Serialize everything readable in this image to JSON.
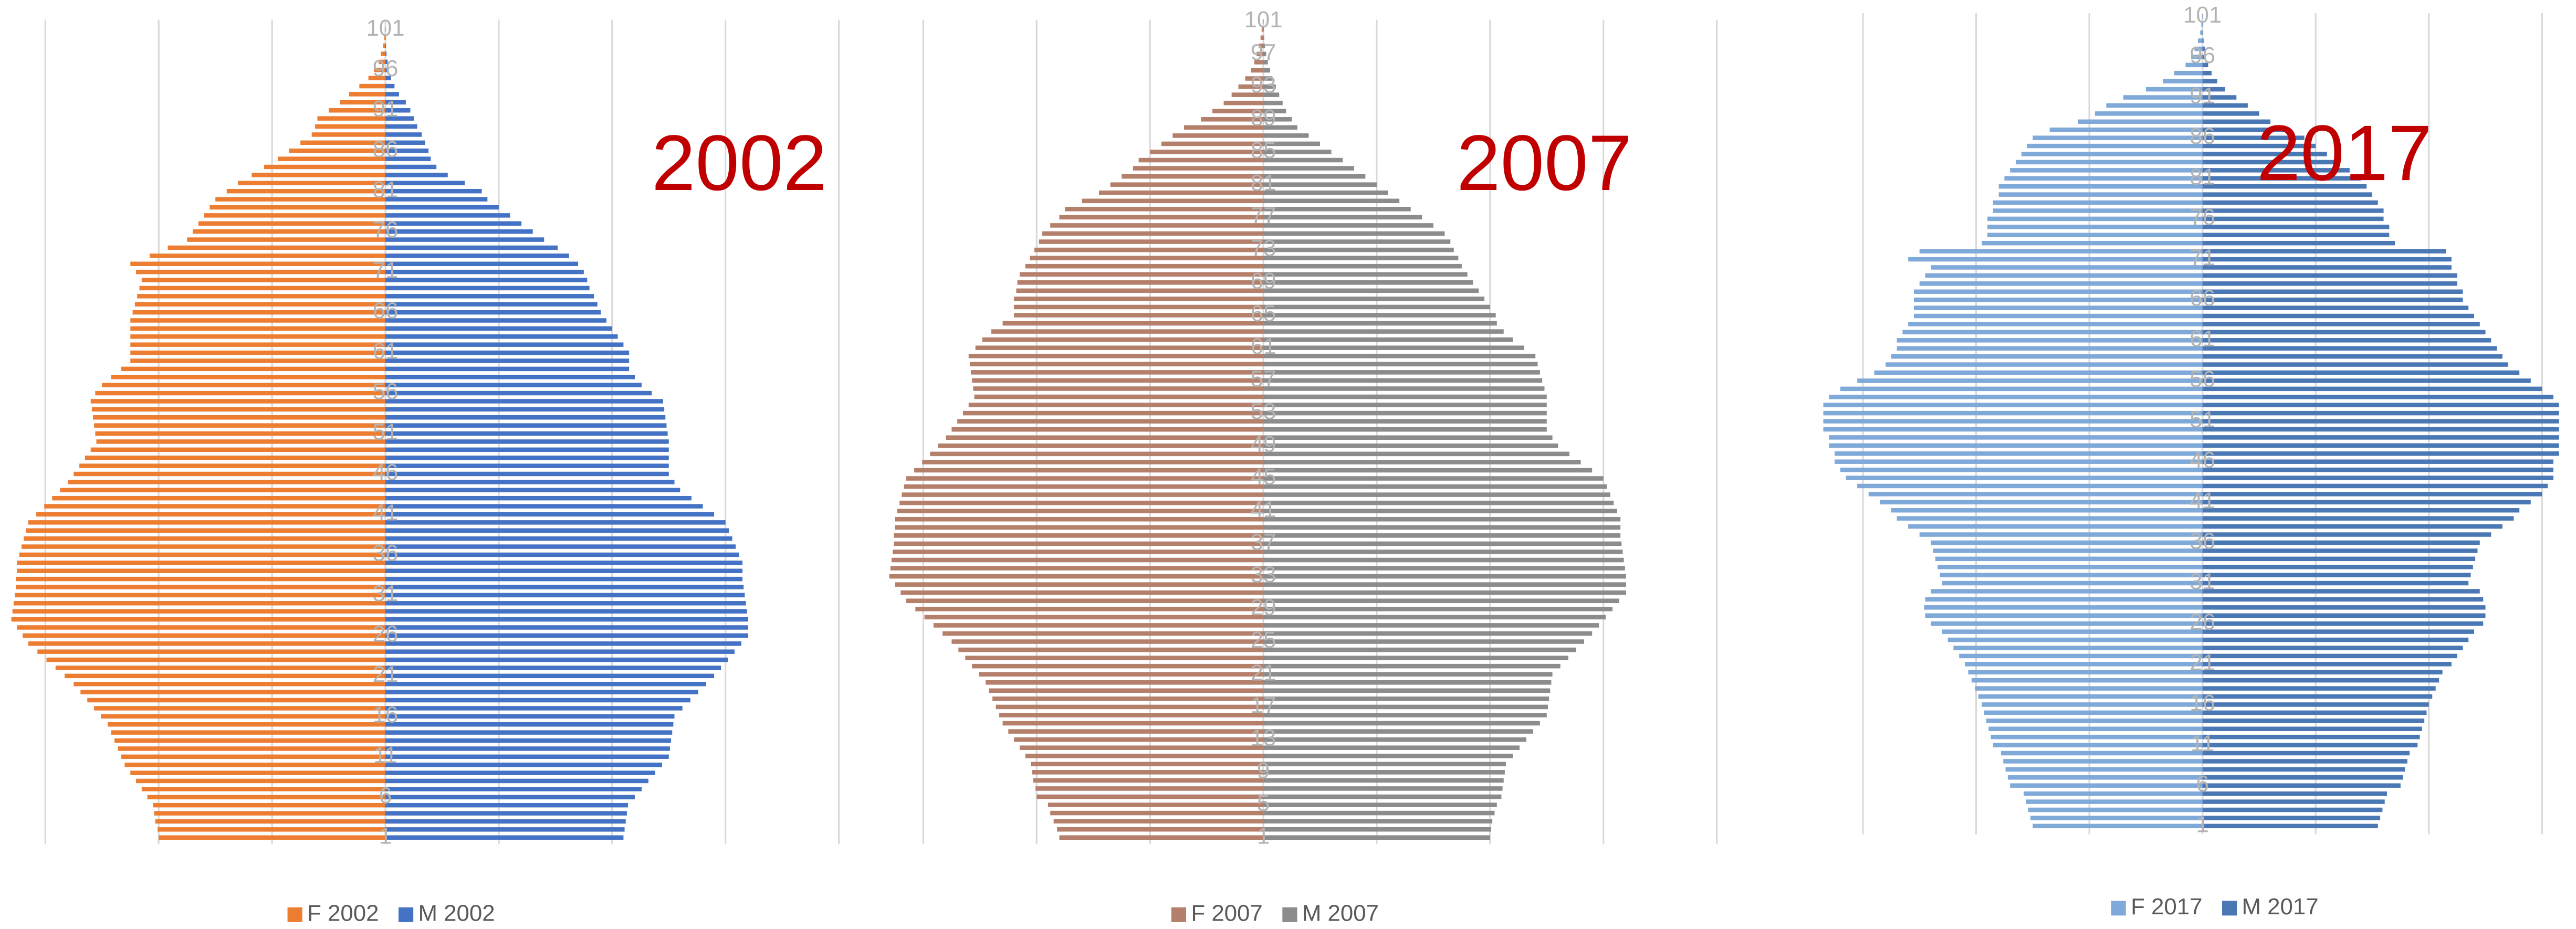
{
  "chart_data": [
    {
      "type": "pyramid",
      "annotation": "2002",
      "annotation_color": "#c00000",
      "categories": [
        1,
        null,
        null,
        null,
        null,
        6,
        null,
        null,
        null,
        null,
        11,
        null,
        null,
        null,
        null,
        16,
        null,
        null,
        null,
        null,
        21,
        null,
        null,
        null,
        null,
        26,
        null,
        null,
        null,
        null,
        31,
        null,
        null,
        null,
        null,
        36,
        null,
        null,
        null,
        null,
        41,
        null,
        null,
        null,
        null,
        46,
        null,
        null,
        null,
        null,
        51,
        null,
        null,
        null,
        null,
        56,
        null,
        null,
        null,
        null,
        61,
        null,
        null,
        null,
        null,
        66,
        null,
        null,
        null,
        null,
        71,
        null,
        null,
        null,
        null,
        76,
        null,
        null,
        null,
        null,
        81,
        null,
        null,
        null,
        null,
        86,
        null,
        null,
        null,
        null,
        91,
        null,
        null,
        null,
        null,
        96,
        null,
        null,
        null,
        null,
        101
      ],
      "series": [
        {
          "name": "F 2002",
          "color": "#ed7d31",
          "side": "left",
          "values": [
            2000,
            2010,
            2030,
            2040,
            2050,
            2100,
            2150,
            2200,
            2250,
            2300,
            2330,
            2360,
            2390,
            2420,
            2450,
            2510,
            2570,
            2630,
            2690,
            2750,
            2830,
            2910,
            2990,
            3070,
            3150,
            3200,
            3250,
            3300,
            3290,
            3280,
            3270,
            3260,
            3260,
            3250,
            3250,
            3230,
            3210,
            3190,
            3170,
            3150,
            3080,
            3010,
            2940,
            2870,
            2800,
            2750,
            2700,
            2650,
            2600,
            2550,
            2560,
            2570,
            2580,
            2590,
            2600,
            2560,
            2500,
            2420,
            2330,
            2250,
            2250,
            2250,
            2250,
            2250,
            2250,
            2230,
            2210,
            2190,
            2170,
            2150,
            2200,
            2250,
            2080,
            1920,
            1750,
            1700,
            1650,
            1600,
            1550,
            1500,
            1400,
            1300,
            1180,
            1070,
            950,
            850,
            750,
            650,
            620,
            600,
            500,
            400,
            320,
            230,
            150,
            100,
            60,
            40,
            20,
            10,
            5
          ]
        },
        {
          "name": "M 2002",
          "color": "#4472c4",
          "side": "right",
          "values": [
            2100,
            2110,
            2120,
            2130,
            2140,
            2200,
            2260,
            2320,
            2380,
            2440,
            2500,
            2510,
            2520,
            2530,
            2540,
            2550,
            2620,
            2690,
            2760,
            2830,
            2900,
            2960,
            3020,
            3080,
            3140,
            3200,
            3200,
            3200,
            3190,
            3180,
            3170,
            3160,
            3150,
            3150,
            3150,
            3120,
            3090,
            3060,
            3030,
            3000,
            2900,
            2800,
            2700,
            2600,
            2550,
            2500,
            2500,
            2500,
            2500,
            2500,
            2490,
            2480,
            2470,
            2460,
            2450,
            2350,
            2260,
            2200,
            2150,
            2150,
            2150,
            2100,
            2050,
            2000,
            1950,
            1900,
            1870,
            1840,
            1800,
            1780,
            1750,
            1700,
            1620,
            1520,
            1400,
            1300,
            1200,
            1100,
            1000,
            900,
            850,
            700,
            550,
            450,
            400,
            380,
            350,
            320,
            280,
            250,
            220,
            180,
            120,
            80,
            50,
            30,
            20,
            10,
            5,
            2,
            1
          ]
        }
      ],
      "xlim": [
        -3400,
        4200
      ],
      "xticks": [
        -3000,
        -2000,
        -1000,
        0,
        1000,
        2000,
        3000,
        4000
      ],
      "grid": true
    },
    {
      "type": "pyramid",
      "annotation": "2007",
      "annotation_color": "#c00000",
      "categories": [
        1,
        null,
        null,
        null,
        5,
        null,
        null,
        null,
        9,
        null,
        null,
        null,
        13,
        null,
        null,
        null,
        17,
        null,
        null,
        null,
        21,
        null,
        null,
        null,
        25,
        null,
        null,
        null,
        29,
        null,
        null,
        null,
        33,
        null,
        null,
        null,
        37,
        null,
        null,
        null,
        41,
        null,
        null,
        null,
        45,
        null,
        null,
        null,
        49,
        null,
        null,
        null,
        53,
        null,
        null,
        null,
        57,
        null,
        null,
        null,
        61,
        null,
        null,
        null,
        65,
        null,
        null,
        null,
        69,
        null,
        null,
        null,
        73,
        null,
        null,
        null,
        77,
        null,
        null,
        null,
        81,
        null,
        null,
        null,
        85,
        null,
        null,
        null,
        89,
        null,
        null,
        null,
        93,
        null,
        null,
        null,
        97,
        null,
        null,
        null,
        101
      ],
      "series": [
        {
          "name": "F 2007",
          "color": "#b5806b",
          "side": "left",
          "values": [
            1800,
            1820,
            1850,
            1880,
            1900,
            2000,
            2010,
            2030,
            2040,
            2050,
            2100,
            2150,
            2200,
            2250,
            2300,
            2330,
            2360,
            2390,
            2420,
            2450,
            2510,
            2570,
            2630,
            2690,
            2750,
            2830,
            2910,
            2990,
            3070,
            3150,
            3200,
            3250,
            3300,
            3290,
            3280,
            3270,
            3260,
            3260,
            3250,
            3250,
            3230,
            3210,
            3190,
            3170,
            3150,
            3080,
            3010,
            2940,
            2870,
            2800,
            2750,
            2700,
            2650,
            2600,
            2550,
            2560,
            2570,
            2580,
            2590,
            2600,
            2540,
            2480,
            2400,
            2300,
            2200,
            2200,
            2200,
            2180,
            2170,
            2150,
            2100,
            2060,
            2020,
            1980,
            1950,
            1880,
            1800,
            1750,
            1600,
            1450,
            1350,
            1250,
            1150,
            1100,
            1000,
            900,
            800,
            700,
            550,
            450,
            350,
            280,
            220,
            160,
            110,
            80,
            60,
            40,
            25,
            15,
            5
          ]
        },
        {
          "name": "M 2007",
          "color": "#8c8c8c",
          "side": "right",
          "values": [
            2000,
            2010,
            2020,
            2040,
            2060,
            2100,
            2110,
            2120,
            2130,
            2140,
            2200,
            2260,
            2320,
            2380,
            2440,
            2500,
            2510,
            2520,
            2530,
            2540,
            2550,
            2620,
            2690,
            2760,
            2830,
            2900,
            2960,
            3020,
            3080,
            3140,
            3200,
            3200,
            3200,
            3190,
            3180,
            3170,
            3160,
            3150,
            3150,
            3150,
            3120,
            3090,
            3060,
            3030,
            3000,
            2900,
            2800,
            2700,
            2600,
            2550,
            2500,
            2500,
            2500,
            2500,
            2500,
            2480,
            2460,
            2440,
            2420,
            2400,
            2300,
            2200,
            2120,
            2060,
            2050,
            2000,
            1950,
            1900,
            1850,
            1800,
            1750,
            1720,
            1680,
            1650,
            1600,
            1500,
            1400,
            1300,
            1200,
            1100,
            1000,
            900,
            800,
            700,
            600,
            500,
            400,
            300,
            250,
            200,
            170,
            140,
            110,
            80,
            60,
            40,
            25,
            15,
            8,
            4,
            2
          ]
        }
      ],
      "xlim": [
        -3400,
        4200
      ],
      "xticks": [
        -3000,
        -2000,
        -1000,
        0,
        1000,
        2000,
        3000,
        4000
      ],
      "grid": true
    },
    {
      "type": "pyramid",
      "annotation": "2017",
      "annotation_color": "#c00000",
      "categories": [
        1,
        null,
        null,
        null,
        null,
        6,
        null,
        null,
        null,
        null,
        11,
        null,
        null,
        null,
        null,
        16,
        null,
        null,
        null,
        null,
        21,
        null,
        null,
        null,
        null,
        26,
        null,
        null,
        null,
        null,
        31,
        null,
        null,
        null,
        null,
        36,
        null,
        null,
        null,
        null,
        41,
        null,
        null,
        null,
        null,
        46,
        null,
        null,
        null,
        null,
        51,
        null,
        null,
        null,
        null,
        56,
        null,
        null,
        null,
        null,
        61,
        null,
        null,
        null,
        null,
        66,
        null,
        null,
        null,
        null,
        71,
        null,
        null,
        null,
        null,
        76,
        null,
        null,
        null,
        null,
        81,
        null,
        null,
        null,
        null,
        86,
        null,
        null,
        null,
        null,
        91,
        null,
        null,
        null,
        null,
        96,
        null,
        null,
        null,
        null,
        101
      ],
      "series": [
        {
          "name": "F 2017",
          "color": "#7fa9d8",
          "side": "left",
          "values": [
            1500,
            1520,
            1540,
            1560,
            1580,
            1700,
            1720,
            1740,
            1760,
            1780,
            1850,
            1870,
            1890,
            1910,
            1930,
            1950,
            1980,
            2010,
            2040,
            2070,
            2100,
            2150,
            2200,
            2250,
            2300,
            2400,
            2450,
            2460,
            2450,
            2400,
            2300,
            2320,
            2340,
            2360,
            2380,
            2400,
            2500,
            2600,
            2700,
            2750,
            2850,
            2950,
            3050,
            3150,
            3200,
            3250,
            3250,
            3300,
            3300,
            3350,
            3350,
            3350,
            3350,
            3300,
            3200,
            3050,
            2900,
            2800,
            2750,
            2700,
            2700,
            2650,
            2600,
            2550,
            2550,
            2550,
            2550,
            2500,
            2450,
            2400,
            2600,
            2500,
            1950,
            1900,
            1900,
            1900,
            1850,
            1850,
            1800,
            1800,
            1750,
            1700,
            1650,
            1600,
            1550,
            1500,
            1350,
            1100,
            950,
            850,
            700,
            500,
            350,
            250,
            150,
            100,
            70,
            40,
            20,
            10,
            3
          ]
        },
        {
          "name": "M 2017",
          "color": "#4a78b5",
          "side": "right",
          "values": [
            1550,
            1570,
            1590,
            1610,
            1630,
            1750,
            1770,
            1790,
            1810,
            1830,
            1900,
            1920,
            1940,
            1960,
            1980,
            2000,
            2030,
            2060,
            2090,
            2120,
            2200,
            2250,
            2300,
            2350,
            2400,
            2480,
            2500,
            2500,
            2480,
            2450,
            2350,
            2370,
            2390,
            2410,
            2430,
            2450,
            2550,
            2650,
            2750,
            2800,
            2900,
            3000,
            3050,
            3100,
            3100,
            3100,
            3150,
            3150,
            3150,
            3150,
            3150,
            3150,
            3150,
            3100,
            3000,
            2900,
            2800,
            2700,
            2650,
            2600,
            2550,
            2500,
            2450,
            2400,
            2350,
            2300,
            2300,
            2250,
            2250,
            2200,
            2200,
            2150,
            1700,
            1650,
            1650,
            1600,
            1600,
            1550,
            1500,
            1450,
            1400,
            1300,
            1200,
            1100,
            1000,
            900,
            750,
            600,
            500,
            400,
            300,
            200,
            130,
            80,
            50,
            30,
            20,
            10,
            5,
            2,
            1
          ]
        }
      ],
      "xlim": [
        -3400,
        3300
      ],
      "xticks": [
        -3000,
        -2000,
        -1000,
        0,
        1000,
        2000,
        3000
      ],
      "grid": true
    }
  ]
}
